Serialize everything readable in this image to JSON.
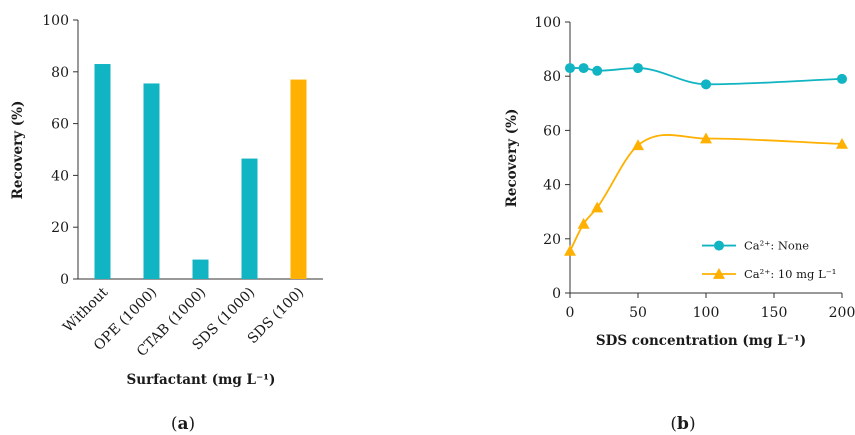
{
  "colors": {
    "teal": "#10B4C2",
    "orange": "#FFB000",
    "axis": "#333333"
  },
  "chart_data": [
    {
      "panel": "a",
      "type": "bar",
      "categories": [
        "Without",
        "OPE (1000)",
        "CTAB (1000)",
        "SDS (1000)",
        "SDS (100)"
      ],
      "values": [
        83,
        75.5,
        7.5,
        46.5,
        77
      ],
      "bar_colors": [
        "teal",
        "teal",
        "teal",
        "teal",
        "orange"
      ],
      "xlabel": "Surfactant (mg L⁻¹)",
      "ylabel": "Recovery (%)",
      "ylim": [
        0,
        100
      ],
      "yticks": [
        "0",
        "20",
        "40",
        "60",
        "80",
        "100"
      ],
      "label": "a"
    },
    {
      "panel": "b",
      "type": "line",
      "xlabel": "SDS concentration (mg L⁻¹)",
      "ylabel": "Recovery (%)",
      "xlim": [
        0,
        200
      ],
      "ylim": [
        0,
        100
      ],
      "xticks": [
        "0",
        "50",
        "100",
        "150",
        "200"
      ],
      "yticks": [
        "0",
        "20",
        "40",
        "60",
        "80",
        "100"
      ],
      "legend_position": "bottom-right",
      "series": [
        {
          "name": "Ca²⁺: None",
          "color": "teal",
          "marker": "circle",
          "x": [
            0,
            10,
            20,
            50,
            100,
            200
          ],
          "y": [
            83,
            83,
            82,
            83,
            77,
            79
          ]
        },
        {
          "name": "Ca²⁺: 10 mg L⁻¹",
          "color": "orange",
          "marker": "triangle",
          "x": [
            0,
            10,
            20,
            50,
            100,
            200
          ],
          "y": [
            15.5,
            25.5,
            31.5,
            54.5,
            57,
            55
          ]
        }
      ],
      "label": "b"
    }
  ]
}
